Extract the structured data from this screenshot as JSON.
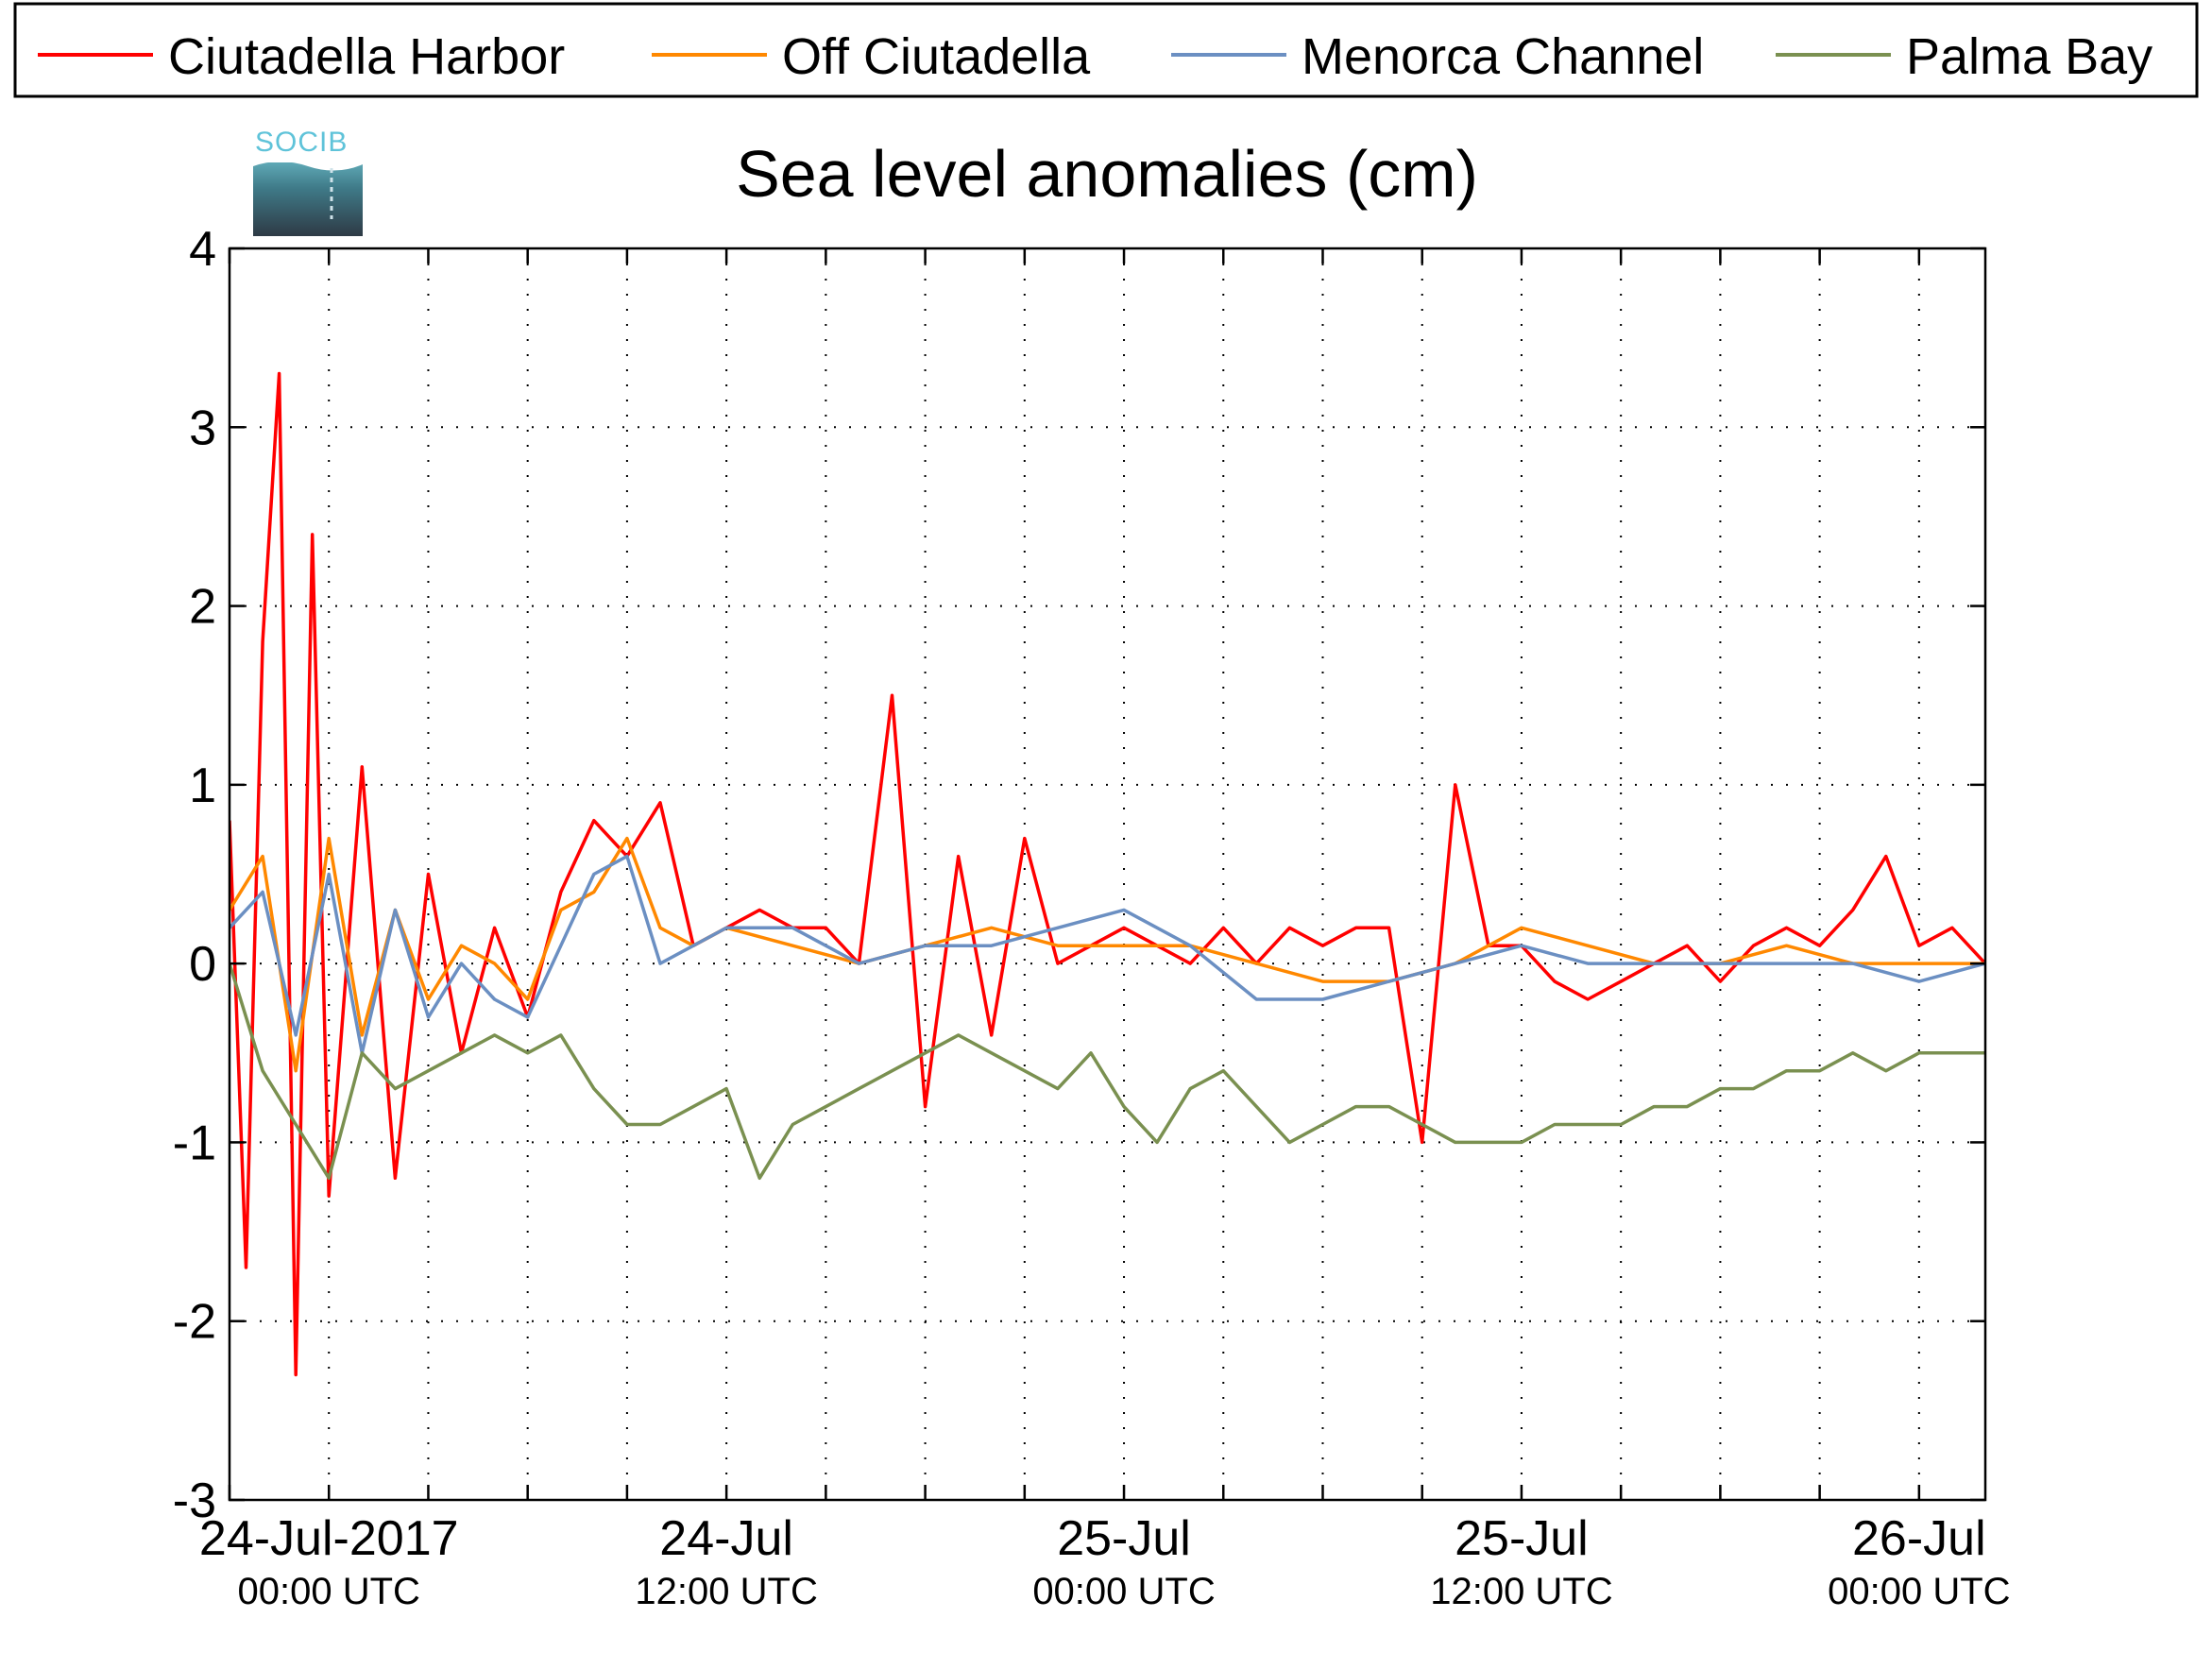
{
  "chart_data": {
    "type": "line",
    "title": "Sea level anomalies (cm)",
    "logo_text": "SOCIB",
    "xlabel": "",
    "ylabel": "",
    "ylim": [
      -3,
      4
    ],
    "yticks": [
      -3,
      -2,
      -1,
      0,
      1,
      2,
      3,
      4
    ],
    "xlim": [
      "2017-07-23T21:00",
      "2017-07-26T02:00"
    ],
    "xticks": [
      {
        "t": "2017-07-24T00:00",
        "line1": "24-Jul-2017",
        "line2": "00:00 UTC"
      },
      {
        "t": "2017-07-24T12:00",
        "line1": "24-Jul",
        "line2": "12:00 UTC"
      },
      {
        "t": "2017-07-25T00:00",
        "line1": "25-Jul",
        "line2": "00:00 UTC"
      },
      {
        "t": "2017-07-25T12:00",
        "line1": "25-Jul",
        "line2": "12:00 UTC"
      },
      {
        "t": "2017-07-26T00:00",
        "line1": "26-Jul",
        "line2": "00:00 UTC"
      }
    ],
    "grid": true,
    "legend_position": "top",
    "series": [
      {
        "name": "Ciutadella Harbor",
        "color": "#ff0000",
        "x": [
          "2017-07-23T21:00",
          "2017-07-23T21:30",
          "2017-07-23T22:00",
          "2017-07-23T22:30",
          "2017-07-23T23:00",
          "2017-07-23T23:30",
          "2017-07-24T00:00",
          "2017-07-24T01:00",
          "2017-07-24T02:00",
          "2017-07-24T03:00",
          "2017-07-24T04:00",
          "2017-07-24T05:00",
          "2017-07-24T06:00",
          "2017-07-24T07:00",
          "2017-07-24T08:00",
          "2017-07-24T09:00",
          "2017-07-24T10:00",
          "2017-07-24T11:00",
          "2017-07-24T12:00",
          "2017-07-24T13:00",
          "2017-07-24T14:00",
          "2017-07-24T15:00",
          "2017-07-24T16:00",
          "2017-07-24T17:00",
          "2017-07-24T18:00",
          "2017-07-24T19:00",
          "2017-07-24T20:00",
          "2017-07-24T21:00",
          "2017-07-24T22:00",
          "2017-07-24T23:00",
          "2017-07-25T00:00",
          "2017-07-25T01:00",
          "2017-07-25T02:00",
          "2017-07-25T03:00",
          "2017-07-25T04:00",
          "2017-07-25T05:00",
          "2017-07-25T06:00",
          "2017-07-25T07:00",
          "2017-07-25T08:00",
          "2017-07-25T09:00",
          "2017-07-25T10:00",
          "2017-07-25T11:00",
          "2017-07-25T12:00",
          "2017-07-25T13:00",
          "2017-07-25T14:00",
          "2017-07-25T15:00",
          "2017-07-25T16:00",
          "2017-07-25T17:00",
          "2017-07-25T18:00",
          "2017-07-25T19:00",
          "2017-07-25T20:00",
          "2017-07-25T21:00",
          "2017-07-25T22:00",
          "2017-07-25T23:00",
          "2017-07-26T00:00",
          "2017-07-26T01:00",
          "2017-07-26T02:00"
        ],
        "y": [
          0.8,
          -1.7,
          1.8,
          3.3,
          -2.3,
          2.4,
          -1.3,
          1.1,
          -1.2,
          0.5,
          -0.5,
          0.2,
          -0.3,
          0.4,
          0.8,
          0.6,
          0.9,
          0.1,
          0.2,
          0.3,
          0.2,
          0.2,
          0.0,
          1.5,
          -0.8,
          0.6,
          -0.4,
          0.7,
          0.0,
          0.1,
          0.2,
          0.1,
          0.0,
          0.2,
          0.0,
          0.2,
          0.1,
          0.2,
          0.2,
          -1.0,
          1.0,
          0.1,
          0.1,
          -0.1,
          -0.2,
          -0.1,
          0.0,
          0.1,
          -0.1,
          0.1,
          0.2,
          0.1,
          0.3,
          0.6,
          0.1,
          0.2,
          0.0
        ]
      },
      {
        "name": "Off Ciutadella",
        "color": "#ff8800",
        "x": [
          "2017-07-23T21:00",
          "2017-07-23T22:00",
          "2017-07-23T23:00",
          "2017-07-24T00:00",
          "2017-07-24T01:00",
          "2017-07-24T02:00",
          "2017-07-24T03:00",
          "2017-07-24T04:00",
          "2017-07-24T05:00",
          "2017-07-24T06:00",
          "2017-07-24T07:00",
          "2017-07-24T08:00",
          "2017-07-24T09:00",
          "2017-07-24T10:00",
          "2017-07-24T11:00",
          "2017-07-24T12:00",
          "2017-07-24T14:00",
          "2017-07-24T16:00",
          "2017-07-24T18:00",
          "2017-07-24T20:00",
          "2017-07-24T22:00",
          "2017-07-25T00:00",
          "2017-07-25T02:00",
          "2017-07-25T04:00",
          "2017-07-25T06:00",
          "2017-07-25T08:00",
          "2017-07-25T10:00",
          "2017-07-25T12:00",
          "2017-07-25T14:00",
          "2017-07-25T16:00",
          "2017-07-25T18:00",
          "2017-07-25T20:00",
          "2017-07-25T22:00",
          "2017-07-26T00:00",
          "2017-07-26T02:00"
        ],
        "y": [
          0.3,
          0.6,
          -0.6,
          0.7,
          -0.4,
          0.3,
          -0.2,
          0.1,
          0.0,
          -0.2,
          0.3,
          0.4,
          0.7,
          0.2,
          0.1,
          0.2,
          0.1,
          0.0,
          0.1,
          0.2,
          0.1,
          0.1,
          0.1,
          0.0,
          -0.1,
          -0.1,
          0.0,
          0.2,
          0.1,
          0.0,
          0.0,
          0.1,
          0.0,
          0.0,
          0.0
        ]
      },
      {
        "name": "Menorca Channel",
        "color": "#6b8fc2",
        "x": [
          "2017-07-23T21:00",
          "2017-07-23T22:00",
          "2017-07-23T23:00",
          "2017-07-24T00:00",
          "2017-07-24T01:00",
          "2017-07-24T02:00",
          "2017-07-24T03:00",
          "2017-07-24T04:00",
          "2017-07-24T05:00",
          "2017-07-24T06:00",
          "2017-07-24T07:00",
          "2017-07-24T08:00",
          "2017-07-24T09:00",
          "2017-07-24T10:00",
          "2017-07-24T11:00",
          "2017-07-24T12:00",
          "2017-07-24T14:00",
          "2017-07-24T16:00",
          "2017-07-24T18:00",
          "2017-07-24T20:00",
          "2017-07-24T22:00",
          "2017-07-25T00:00",
          "2017-07-25T02:00",
          "2017-07-25T04:00",
          "2017-07-25T06:00",
          "2017-07-25T08:00",
          "2017-07-25T10:00",
          "2017-07-25T12:00",
          "2017-07-25T14:00",
          "2017-07-25T16:00",
          "2017-07-25T18:00",
          "2017-07-25T20:00",
          "2017-07-25T22:00",
          "2017-07-26T00:00",
          "2017-07-26T02:00"
        ],
        "y": [
          0.2,
          0.4,
          -0.4,
          0.5,
          -0.5,
          0.3,
          -0.3,
          0.0,
          -0.2,
          -0.3,
          0.1,
          0.5,
          0.6,
          0.0,
          0.1,
          0.2,
          0.2,
          0.0,
          0.1,
          0.1,
          0.2,
          0.3,
          0.1,
          -0.2,
          -0.2,
          -0.1,
          0.0,
          0.1,
          0.0,
          0.0,
          0.0,
          0.0,
          0.0,
          -0.1,
          0.0
        ]
      },
      {
        "name": "Palma Bay",
        "color": "#7a9050",
        "x": [
          "2017-07-23T21:00",
          "2017-07-23T22:00",
          "2017-07-23T23:00",
          "2017-07-24T00:00",
          "2017-07-24T01:00",
          "2017-07-24T02:00",
          "2017-07-24T03:00",
          "2017-07-24T04:00",
          "2017-07-24T05:00",
          "2017-07-24T06:00",
          "2017-07-24T07:00",
          "2017-07-24T08:00",
          "2017-07-24T09:00",
          "2017-07-24T10:00",
          "2017-07-24T11:00",
          "2017-07-24T12:00",
          "2017-07-24T13:00",
          "2017-07-24T14:00",
          "2017-07-24T15:00",
          "2017-07-24T16:00",
          "2017-07-24T17:00",
          "2017-07-24T18:00",
          "2017-07-24T19:00",
          "2017-07-24T20:00",
          "2017-07-24T21:00",
          "2017-07-24T22:00",
          "2017-07-24T23:00",
          "2017-07-25T00:00",
          "2017-07-25T01:00",
          "2017-07-25T02:00",
          "2017-07-25T03:00",
          "2017-07-25T04:00",
          "2017-07-25T05:00",
          "2017-07-25T06:00",
          "2017-07-25T07:00",
          "2017-07-25T08:00",
          "2017-07-25T09:00",
          "2017-07-25T10:00",
          "2017-07-25T11:00",
          "2017-07-25T12:00",
          "2017-07-25T13:00",
          "2017-07-25T14:00",
          "2017-07-25T15:00",
          "2017-07-25T16:00",
          "2017-07-25T17:00",
          "2017-07-25T18:00",
          "2017-07-25T19:00",
          "2017-07-25T20:00",
          "2017-07-25T21:00",
          "2017-07-25T22:00",
          "2017-07-25T23:00",
          "2017-07-26T00:00",
          "2017-07-26T01:00",
          "2017-07-26T02:00"
        ],
        "y": [
          0.0,
          -0.6,
          -0.9,
          -1.2,
          -0.5,
          -0.7,
          -0.6,
          -0.5,
          -0.4,
          -0.5,
          -0.4,
          -0.7,
          -0.9,
          -0.9,
          -0.8,
          -0.7,
          -1.2,
          -0.9,
          -0.8,
          -0.7,
          -0.6,
          -0.5,
          -0.4,
          -0.5,
          -0.6,
          -0.7,
          -0.5,
          -0.8,
          -1.0,
          -0.7,
          -0.6,
          -0.8,
          -1.0,
          -0.9,
          -0.8,
          -0.8,
          -0.9,
          -1.0,
          -1.0,
          -1.0,
          -0.9,
          -0.9,
          -0.9,
          -0.8,
          -0.8,
          -0.7,
          -0.7,
          -0.6,
          -0.6,
          -0.5,
          -0.6,
          -0.5,
          -0.5,
          -0.5
        ]
      }
    ]
  }
}
